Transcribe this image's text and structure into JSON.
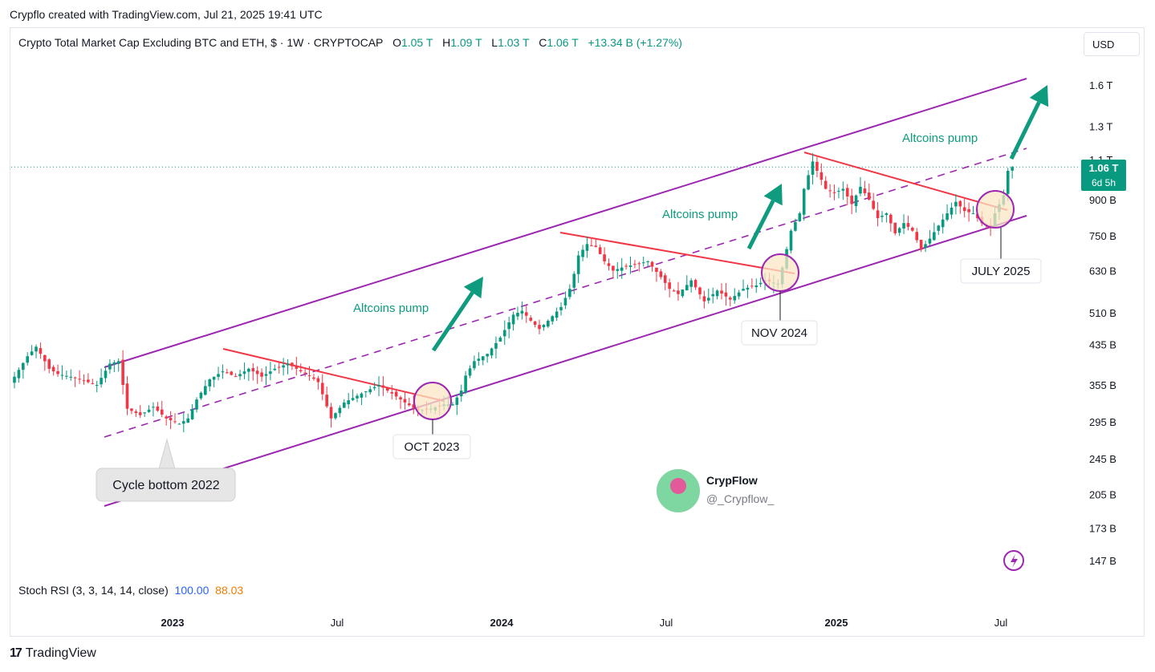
{
  "credit": "Crypflo created with TradingView.com, Jul 21, 2025 19:41 UTC",
  "header": {
    "symbol": "Crypto Total Market Cap Excluding BTC and ETH, $ · 1W · CRYPTOCAP",
    "o_label": "O",
    "o_value": "1.05 T",
    "h_label": "H",
    "h_value": "1.09 T",
    "l_label": "L",
    "l_value": "1.03 T",
    "c_label": "C",
    "c_value": "1.06 T",
    "change": "+13.34 B (+1.27%)"
  },
  "currency_button": "USD",
  "price_badge": {
    "value": "1.06 T",
    "countdown": "6d 5h"
  },
  "indicator": {
    "label": "Stoch RSI (3, 3, 14, 14, close)",
    "k": "100.00",
    "d": "88.03"
  },
  "footer_logo": "TradingView",
  "colors": {
    "up": "#089981",
    "down": "#f23645",
    "channel": "#9c27b0",
    "trendline": "#f23645",
    "arrow": "#0e9b7e",
    "circle_fill": "#fbe6c4"
  },
  "chart_data": {
    "type": "candlestick",
    "title": "Crypto Total Market Cap Excluding BTC and ETH",
    "y_scale": "log",
    "y_ticks": [
      "1.6 T",
      "1.3 T",
      "1.1 T",
      "900 B",
      "750 B",
      "630 B",
      "510 B",
      "435 B",
      "355 B",
      "295 B",
      "245 B",
      "205 B",
      "173 B",
      "147 B"
    ],
    "x_ticks": [
      "2023",
      "Jul",
      "2024",
      "Jul",
      "2025",
      "Jul"
    ],
    "last_price": "1.06 T",
    "annotations": {
      "cycle_bottom": "Cycle bottom 2022",
      "oct_2023": "OCT 2023",
      "nov_2024": "NOV 2024",
      "july_2025": "JULY 2025",
      "pump_1": "Altcoins pump",
      "pump_2": "Altcoins pump",
      "pump_3": "Altcoins pump"
    },
    "watermark": {
      "name": "CrypFlow",
      "handle": "@_Crypflow_"
    },
    "series": [
      {
        "name": "candles",
        "anchors": [
          [
            0,
            370
          ],
          [
            3,
            410
          ],
          [
            5,
            430
          ],
          [
            6,
            415
          ],
          [
            8,
            385
          ],
          [
            10,
            375
          ],
          [
            14,
            368
          ],
          [
            17,
            360
          ],
          [
            19,
            355
          ],
          [
            22,
            395
          ],
          [
            24,
            400
          ],
          [
            26,
            315
          ],
          [
            29,
            305
          ],
          [
            32,
            318
          ],
          [
            35,
            300
          ],
          [
            38,
            292
          ],
          [
            40,
            300
          ],
          [
            42,
            330
          ],
          [
            45,
            365
          ],
          [
            48,
            380
          ],
          [
            51,
            370
          ],
          [
            54,
            385
          ],
          [
            57,
            370
          ],
          [
            60,
            385
          ],
          [
            63,
            395
          ],
          [
            66,
            380
          ],
          [
            68,
            372
          ],
          [
            70,
            360
          ],
          [
            73,
            300
          ],
          [
            76,
            325
          ],
          [
            80,
            340
          ],
          [
            84,
            355
          ],
          [
            87,
            340
          ],
          [
            90,
            325
          ],
          [
            93,
            312
          ],
          [
            96,
            315
          ],
          [
            99,
            322
          ],
          [
            101,
            322
          ],
          [
            103,
            345
          ],
          [
            104,
            372
          ],
          [
            106,
            400
          ],
          [
            109,
            415
          ],
          [
            112,
            450
          ],
          [
            115,
            505
          ],
          [
            117,
            515
          ],
          [
            119,
            490
          ],
          [
            121,
            470
          ],
          [
            123,
            490
          ],
          [
            126,
            525
          ],
          [
            128,
            575
          ],
          [
            129,
            620
          ],
          [
            130,
            680
          ],
          [
            132,
            720
          ],
          [
            134,
            710
          ],
          [
            136,
            660
          ],
          [
            138,
            630
          ],
          [
            140,
            640
          ],
          [
            143,
            650
          ],
          [
            146,
            660
          ],
          [
            149,
            610
          ],
          [
            151,
            575
          ],
          [
            153,
            560
          ],
          [
            156,
            600
          ],
          [
            159,
            540
          ],
          [
            162,
            570
          ],
          [
            165,
            545
          ],
          [
            168,
            575
          ],
          [
            171,
            585
          ],
          [
            173,
            600
          ],
          [
            176,
            590
          ],
          [
            177,
            640
          ],
          [
            179,
            770
          ],
          [
            181,
            840
          ],
          [
            182,
            950
          ],
          [
            184,
            1090
          ],
          [
            185,
            1040
          ],
          [
            187,
            950
          ],
          [
            189,
            930
          ],
          [
            191,
            950
          ],
          [
            193,
            880
          ],
          [
            195,
            960
          ],
          [
            197,
            900
          ],
          [
            199,
            820
          ],
          [
            201,
            840
          ],
          [
            203,
            760
          ],
          [
            205,
            800
          ],
          [
            207,
            770
          ],
          [
            209,
            700
          ],
          [
            211,
            740
          ],
          [
            213,
            790
          ],
          [
            215,
            840
          ],
          [
            217,
            890
          ],
          [
            219,
            850
          ],
          [
            221,
            840
          ],
          [
            223,
            800
          ],
          [
            225,
            780
          ],
          [
            226,
            840
          ],
          [
            228,
            920
          ],
          [
            229,
            1040
          ],
          [
            230,
            1060
          ]
        ]
      }
    ]
  }
}
